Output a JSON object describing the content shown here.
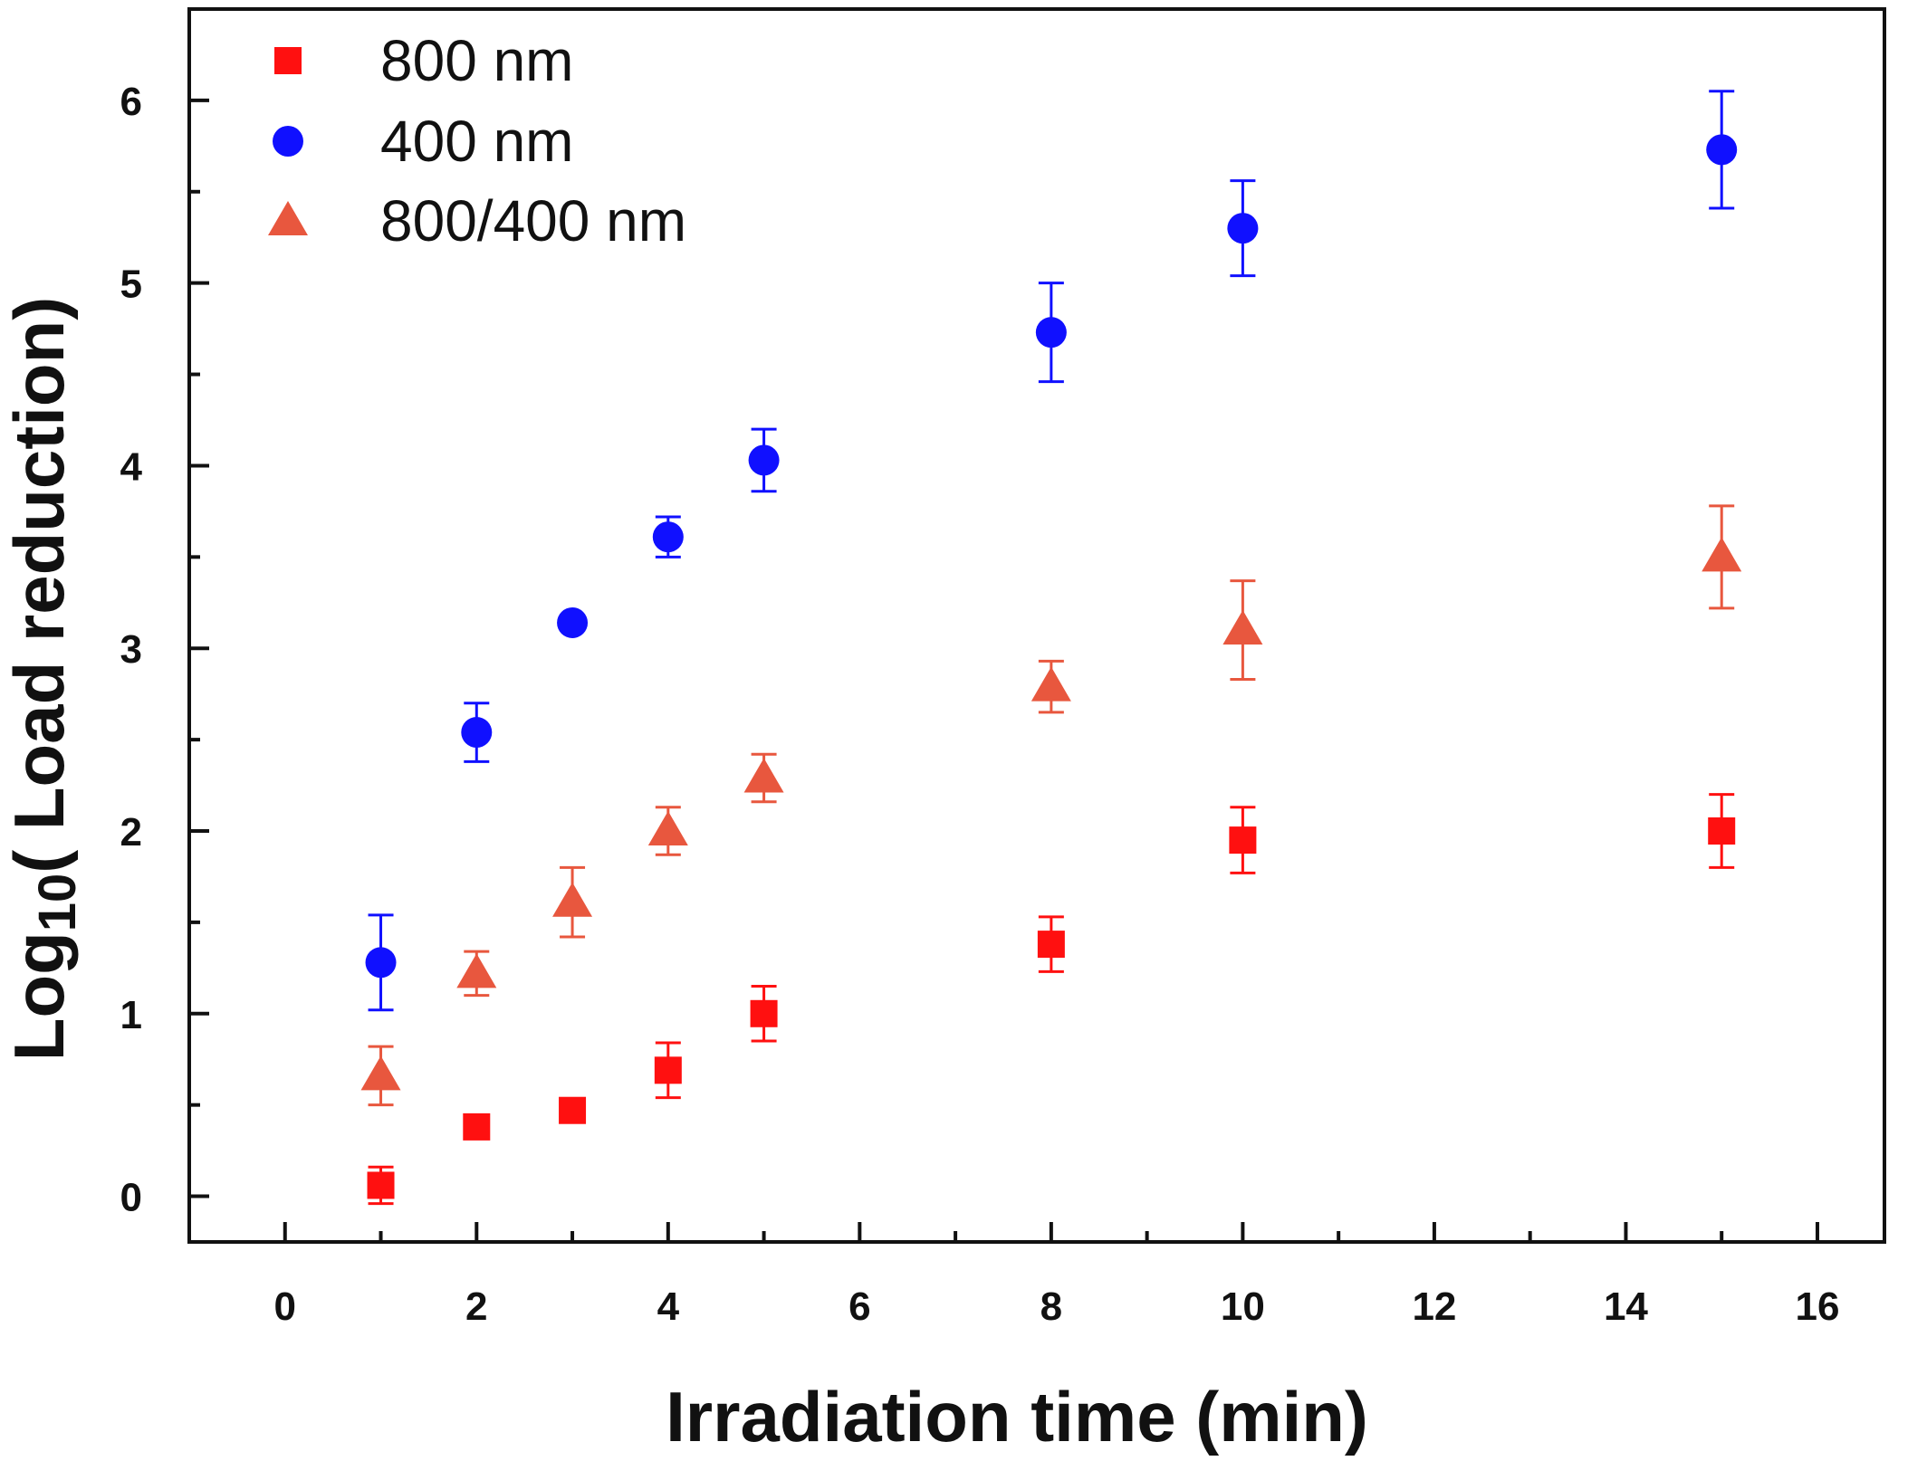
{
  "chart_data": {
    "type": "scatter",
    "xlabel": "Irradiation time (min)",
    "ylabel_main": "Log",
    "ylabel_sub": "10",
    "ylabel_rest": "( Load reduction)",
    "xlim": [
      -1,
      16.7
    ],
    "ylim": [
      -0.25,
      6.5
    ],
    "x_ticks": [
      0,
      2,
      4,
      6,
      8,
      10,
      12,
      14,
      16
    ],
    "y_ticks": [
      0,
      1,
      2,
      3,
      4,
      5,
      6
    ],
    "legend_position": "top-left",
    "series": [
      {
        "name": "800 nm",
        "marker": "square",
        "color": "#ff1010",
        "points": [
          {
            "x": 1,
            "y": 0.06,
            "err": 0.1
          },
          {
            "x": 2,
            "y": 0.38,
            "err": 0.04
          },
          {
            "x": 3,
            "y": 0.47,
            "err": 0.04
          },
          {
            "x": 4,
            "y": 0.69,
            "err": 0.15
          },
          {
            "x": 5,
            "y": 1.0,
            "err": 0.15
          },
          {
            "x": 8,
            "y": 1.38,
            "err": 0.15
          },
          {
            "x": 10,
            "y": 1.95,
            "err": 0.18
          },
          {
            "x": 15,
            "y": 2.0,
            "err": 0.2
          }
        ]
      },
      {
        "name": "400 nm",
        "marker": "circle",
        "color": "#1010ff",
        "points": [
          {
            "x": 1,
            "y": 1.28,
            "err": 0.26
          },
          {
            "x": 2,
            "y": 2.54,
            "err": 0.16
          },
          {
            "x": 3,
            "y": 3.14,
            "err": 0.0
          },
          {
            "x": 4,
            "y": 3.61,
            "err": 0.11
          },
          {
            "x": 5,
            "y": 4.03,
            "err": 0.17
          },
          {
            "x": 8,
            "y": 4.73,
            "err": 0.27
          },
          {
            "x": 10,
            "y": 5.3,
            "err": 0.26
          },
          {
            "x": 15,
            "y": 5.73,
            "err": 0.32
          }
        ]
      },
      {
        "name": "800/400 nm",
        "marker": "triangle",
        "color": "#e8573e",
        "points": [
          {
            "x": 1,
            "y": 0.66,
            "err": 0.16
          },
          {
            "x": 2,
            "y": 1.22,
            "err": 0.12
          },
          {
            "x": 3,
            "y": 1.61,
            "err": 0.19
          },
          {
            "x": 4,
            "y": 2.0,
            "err": 0.13
          },
          {
            "x": 5,
            "y": 2.29,
            "err": 0.13
          },
          {
            "x": 8,
            "y": 2.79,
            "err": 0.14
          },
          {
            "x": 10,
            "y": 3.1,
            "err": 0.27
          },
          {
            "x": 15,
            "y": 3.5,
            "err": 0.28
          }
        ]
      }
    ]
  }
}
